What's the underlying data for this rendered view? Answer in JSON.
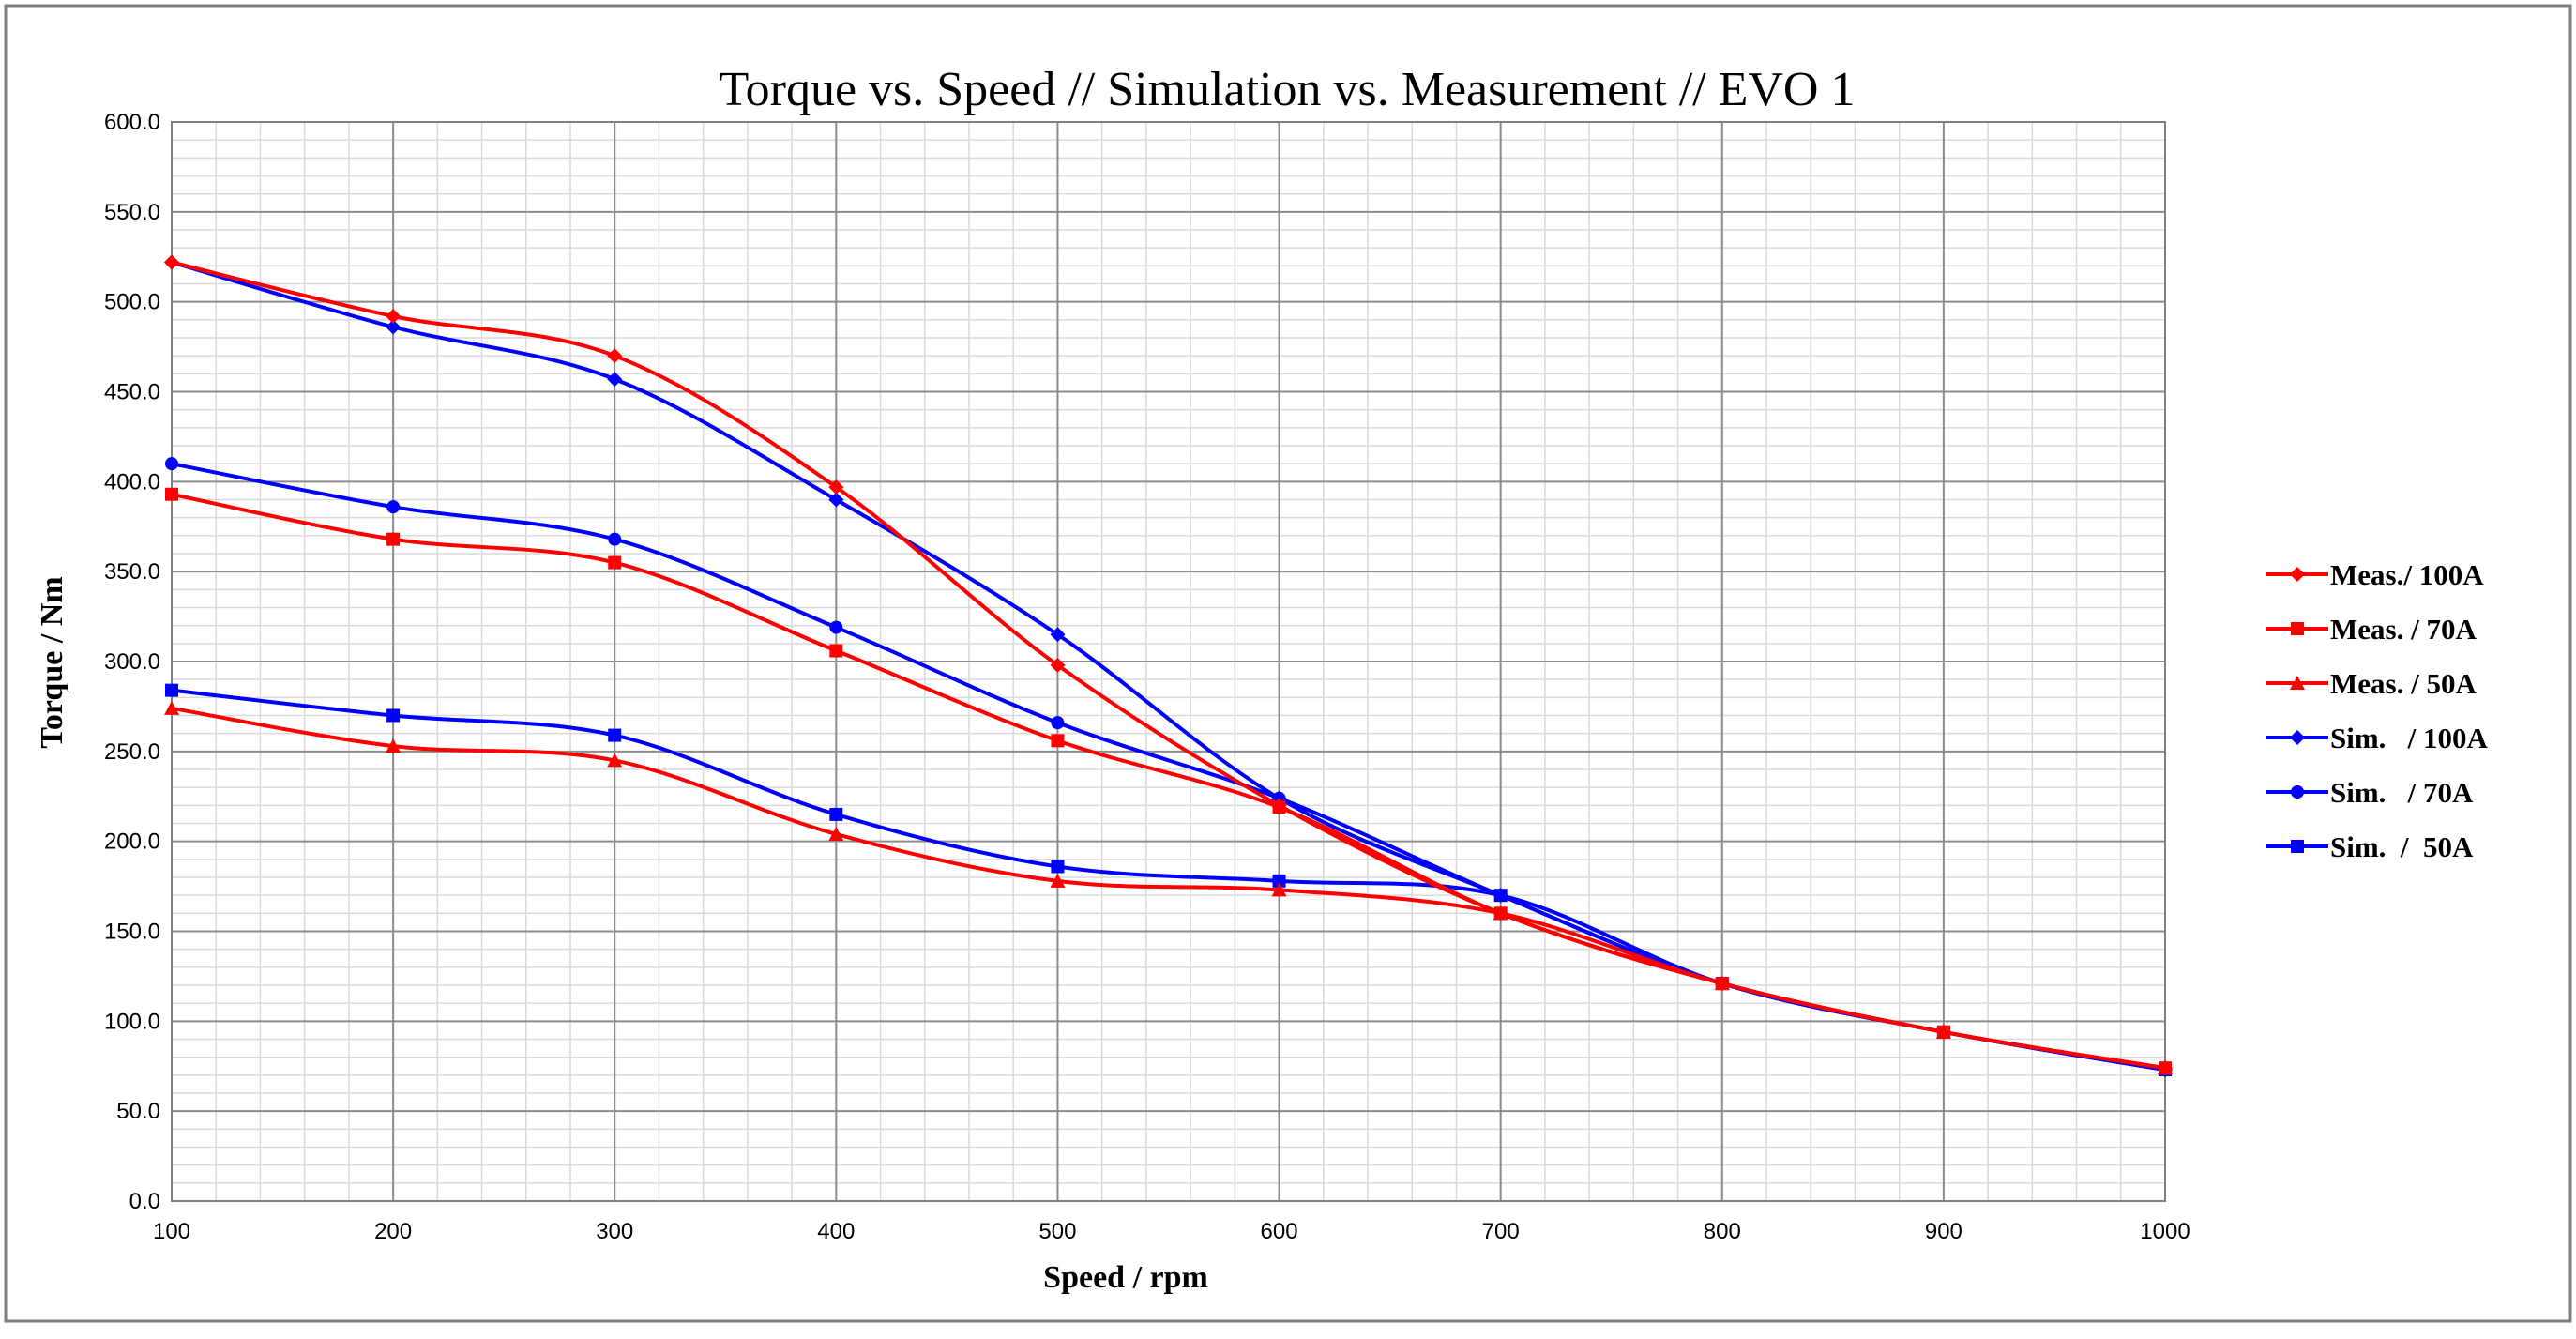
{
  "chart_data": {
    "type": "line",
    "title": "Torque vs. Speed // Simulation vs. Measurement // EVO 1",
    "xlabel": "Speed / rpm",
    "ylabel": "Torque / Nm",
    "xlim": [
      100,
      1000
    ],
    "ylim": [
      0,
      600
    ],
    "x_ticks": [
      "100",
      "200",
      "300",
      "400",
      "500",
      "600",
      "700",
      "800",
      "900",
      "1000"
    ],
    "y_ticks": [
      "0.0",
      "50.0",
      "100.0",
      "150.0",
      "200.0",
      "250.0",
      "300.0",
      "350.0",
      "400.0",
      "450.0",
      "500.0",
      "550.0",
      "600.0"
    ],
    "x_minor_step": 20,
    "y_minor_step": 10,
    "grid": true,
    "legend_position": "right",
    "x": [
      100,
      200,
      300,
      400,
      500,
      600,
      700,
      800,
      900,
      1000
    ],
    "series": [
      {
        "name": "Meas./ 100A",
        "color": "#ff0000",
        "marker": "diamond",
        "values": [
          522,
          492,
          470,
          397,
          298,
          220,
          160,
          121,
          94,
          74
        ]
      },
      {
        "name": "Meas. / 70A",
        "color": "#ff0000",
        "marker": "square",
        "values": [
          393,
          368,
          355,
          306,
          256,
          219,
          160,
          121,
          94,
          74
        ]
      },
      {
        "name": "Meas. / 50A",
        "color": "#ff0000",
        "marker": "triangle",
        "values": [
          274,
          253,
          245,
          204,
          178,
          173,
          160,
          121,
          94,
          74
        ]
      },
      {
        "name": "Sim.   / 100A",
        "color": "#0000ff",
        "marker": "diamond",
        "values": [
          522,
          486,
          457,
          390,
          315,
          224,
          170,
          121,
          94,
          73
        ]
      },
      {
        "name": "Sim.   / 70A",
        "color": "#0000ff",
        "marker": "circle",
        "values": [
          410,
          386,
          368,
          319,
          266,
          224,
          170,
          121,
          94,
          73
        ]
      },
      {
        "name": "Sim.  /  50A",
        "color": "#0000ff",
        "marker": "square",
        "values": [
          284,
          270,
          259,
          215,
          186,
          178,
          170,
          121,
          94,
          73
        ]
      }
    ]
  }
}
